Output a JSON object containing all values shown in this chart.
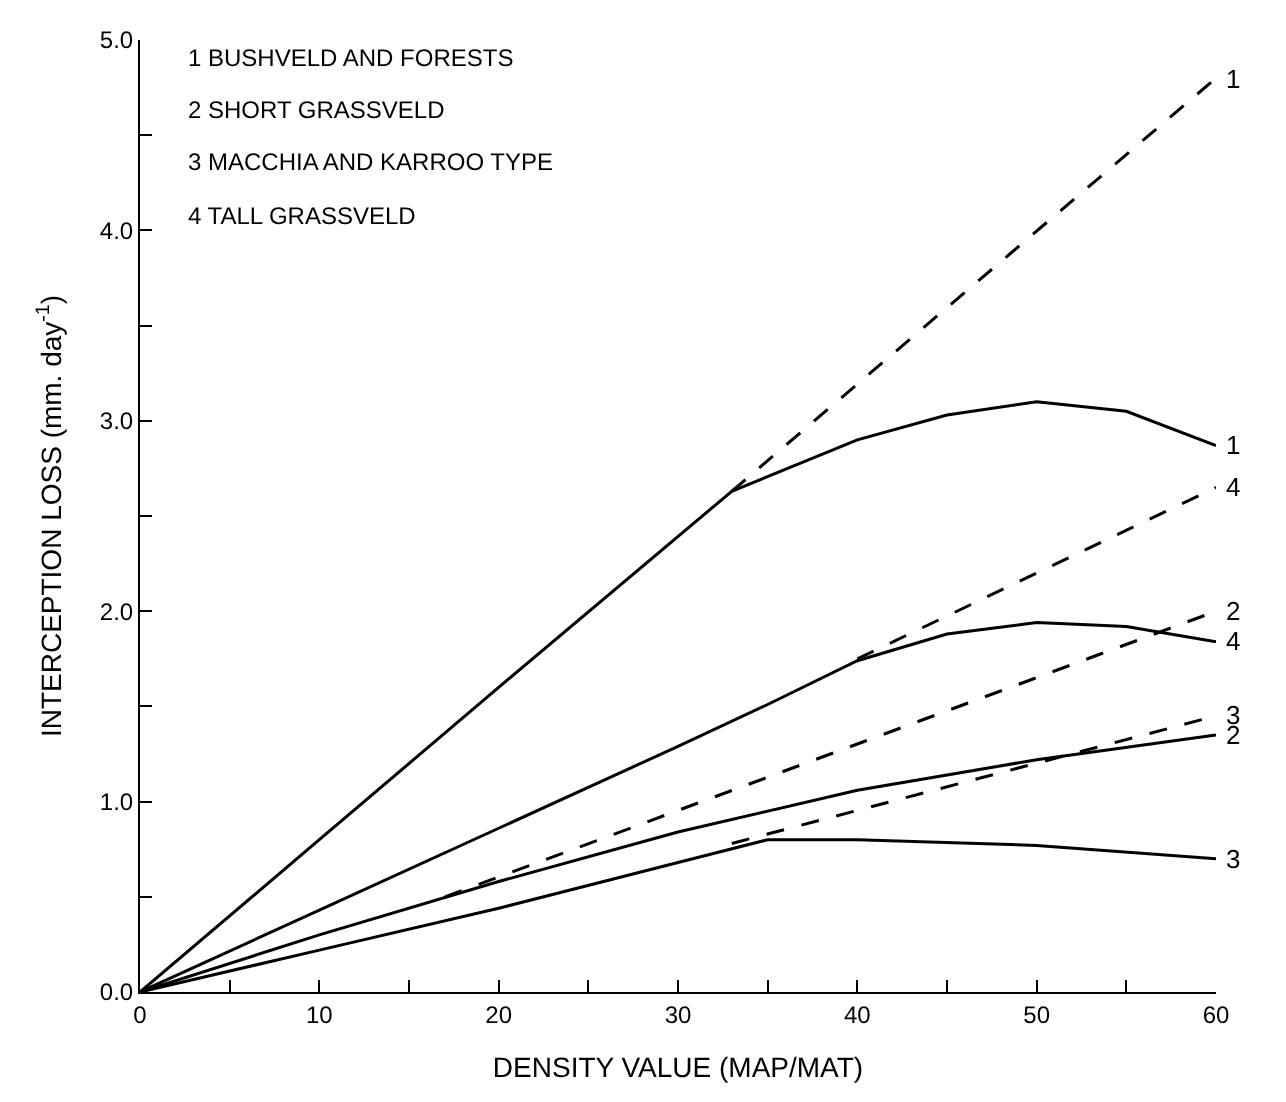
{
  "chart_data": {
    "type": "line",
    "xlabel": "DENSITY VALUE (MAP/MAT)",
    "ylabel": "INTERCEPTION LOSS (mm. day$^{-1}$)",
    "annotations": [
      "1 BUSHVELD AND FORESTS",
      "2 SHORT GRASSVELD",
      "3 MACCHIA AND KARROO TYPE",
      "4 TALL GRASSVELD"
    ],
    "series": [
      {
        "name": "1",
        "color": "#000000",
        "line_style": "solid",
        "x": [
          0,
          10,
          20,
          33,
          40,
          45,
          50,
          55,
          60
        ],
        "values": [
          0,
          0.8,
          1.6,
          2.63,
          2.9,
          3.03,
          3.1,
          3.05,
          2.87
        ]
      },
      {
        "name": "4",
        "color": "#000000",
        "line_style": "solid",
        "x": [
          0,
          10,
          20,
          30,
          35,
          40,
          45,
          50,
          55,
          60
        ],
        "values": [
          0,
          0.43,
          0.86,
          1.29,
          1.51,
          1.74,
          1.88,
          1.94,
          1.92,
          1.84
        ]
      },
      {
        "name": "2",
        "color": "#000000",
        "line_style": "solid",
        "x": [
          0,
          10,
          20,
          30,
          40,
          50,
          60
        ],
        "values": [
          0,
          0.3,
          0.58,
          0.84,
          1.06,
          1.22,
          1.35
        ]
      },
      {
        "name": "3",
        "color": "#000000",
        "line_style": "solid",
        "x": [
          0,
          10,
          20,
          30,
          35,
          40,
          50,
          60
        ],
        "values": [
          0,
          0.22,
          0.44,
          0.68,
          0.8,
          0.8,
          0.77,
          0.7
        ]
      },
      {
        "name": "1",
        "color": "#000000",
        "line_style": "dashed",
        "x": [
          33,
          60
        ],
        "values": [
          2.63,
          4.8
        ]
      },
      {
        "name": "4",
        "color": "#000000",
        "line_style": "dashed",
        "x": [
          40,
          60
        ],
        "values": [
          1.75,
          2.65
        ]
      },
      {
        "name": "2",
        "color": "#000000",
        "line_style": "dashed",
        "x": [
          17,
          60
        ],
        "values": [
          0.5,
          2.0
        ]
      },
      {
        "name": "3",
        "color": "#000000",
        "line_style": "dashed",
        "x": [
          33,
          60
        ],
        "values": [
          0.78,
          1.45
        ]
      }
    ],
    "xlim": [
      0,
      60
    ],
    "xticks": [
      0,
      {
        "value": 5,
        "label": null
      },
      10,
      {
        "value": 15,
        "label": null
      },
      20,
      {
        "value": 25,
        "label": null
      },
      30,
      {
        "value": 35,
        "label": null
      },
      40,
      {
        "value": 45,
        "label": null
      },
      50,
      {
        "value": 55,
        "label": null
      },
      60
    ],
    "ylim": [
      0,
      5
    ],
    "yticks": [
      {
        "value": 0,
        "label": "0.0"
      },
      {
        "value": 0.5,
        "label": null
      },
      {
        "value": 1,
        "label": "1.0"
      },
      {
        "value": 1.5,
        "label": null
      },
      {
        "value": 2,
        "label": "2.0"
      },
      {
        "value": 2.5,
        "label": null
      },
      {
        "value": 3,
        "label": "3.0"
      },
      {
        "value": 3.5,
        "label": null
      },
      {
        "value": 4,
        "label": "4.0"
      },
      {
        "value": 4.5,
        "label": null
      },
      {
        "value": 5,
        "label": "5.0"
      }
    ],
    "legend": false,
    "marker": "none"
  }
}
